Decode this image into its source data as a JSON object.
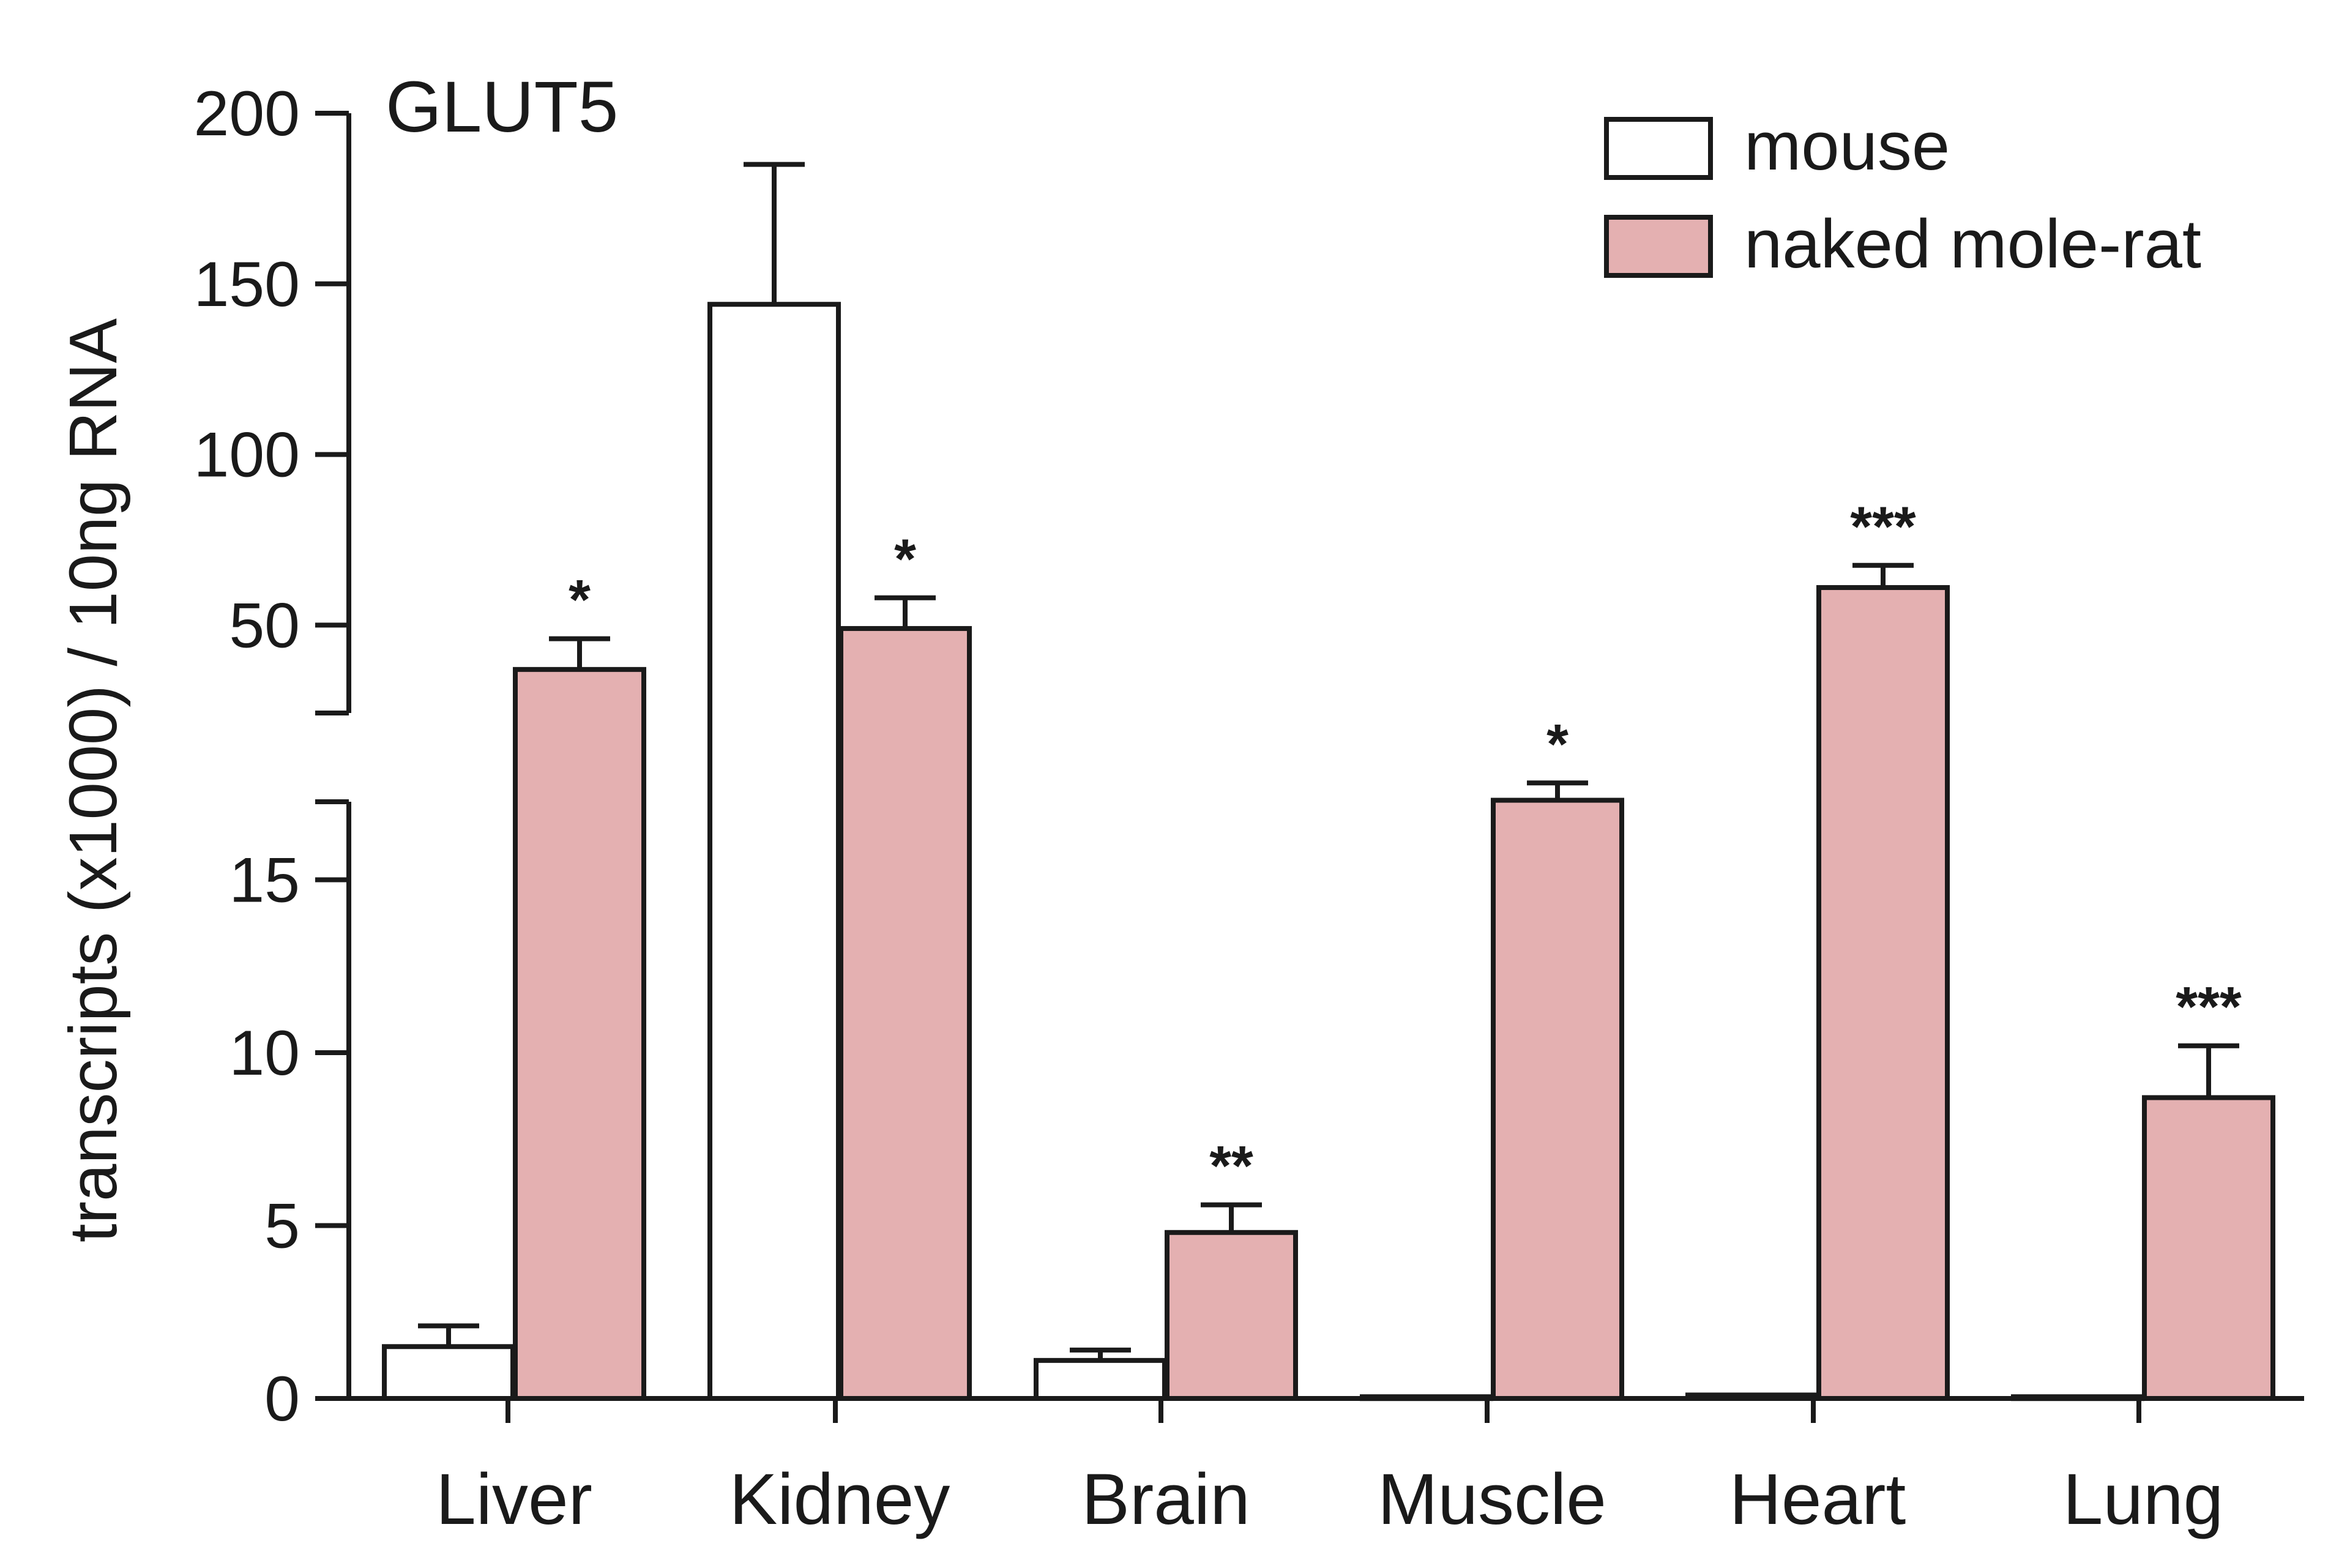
{
  "chart_data": {
    "type": "bar",
    "title": "GLUT5",
    "xlabel": "",
    "ylabel": "transcripts (x1000) / 10ng RNA",
    "categories": [
      "Liver",
      "Kidney",
      "Brain",
      "Muscle",
      "Heart",
      "Lung"
    ],
    "axis": {
      "broken": true,
      "lower_segment": {
        "range": [
          0,
          20
        ],
        "ticks": [
          "0",
          "5",
          "10",
          "15"
        ]
      },
      "upper_segment": {
        "range": [
          35,
          200
        ],
        "ticks": [
          "50",
          "100",
          "150",
          "200"
        ]
      }
    },
    "series": [
      {
        "name": "mouse",
        "color": "#ffffff",
        "values": [
          1.5,
          144,
          1.1,
          0.05,
          0.1,
          0.05
        ],
        "errors": [
          0.6,
          41,
          0.3,
          0,
          0,
          0
        ]
      },
      {
        "name": "naked mole-rat",
        "color": "#e4b0b1",
        "values": [
          37,
          49,
          4.8,
          17.3,
          61,
          8.7
        ],
        "errors": [
          9,
          9,
          0.8,
          0.5,
          6.5,
          1.5
        ],
        "significance": [
          "*",
          "*",
          "**",
          "*",
          "***",
          "***"
        ]
      }
    ],
    "legend": {
      "position": "top-right"
    },
    "grid": false
  }
}
